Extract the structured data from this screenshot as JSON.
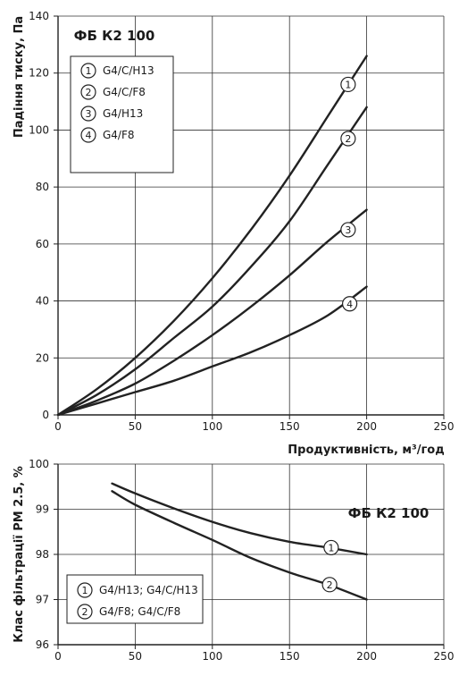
{
  "chart_data": [
    {
      "type": "line",
      "title": "ФБ К2 100",
      "xlabel": "Продуктивність, м³/год",
      "ylabel": "Падіння тиску, Па",
      "xlim": [
        0,
        250
      ],
      "ylim": [
        0,
        140
      ],
      "x_ticks": [
        "0",
        "50",
        "100",
        "150",
        "200",
        "250"
      ],
      "y_ticks": [
        "0",
        "20",
        "40",
        "60",
        "80",
        "100",
        "120",
        "140"
      ],
      "grid": true,
      "legend": "top-left",
      "series": [
        {
          "name": "G4/C/H13",
          "marker": "1",
          "label_at": [
            188,
            116
          ],
          "points": [
            [
              0,
              0
            ],
            [
              25,
              9
            ],
            [
              50,
              20
            ],
            [
              75,
              33
            ],
            [
              100,
              48
            ],
            [
              125,
              65
            ],
            [
              150,
              84
            ],
            [
              175,
              105
            ],
            [
              200,
              126
            ]
          ]
        },
        {
          "name": "G4/C/F8",
          "marker": "2",
          "label_at": [
            188,
            97
          ],
          "points": [
            [
              0,
              0
            ],
            [
              25,
              7
            ],
            [
              50,
              16
            ],
            [
              75,
              27
            ],
            [
              100,
              38
            ],
            [
              125,
              52
            ],
            [
              150,
              68
            ],
            [
              175,
              88
            ],
            [
              200,
              108
            ]
          ]
        },
        {
          "name": "G4/H13",
          "marker": "3",
          "label_at": [
            188,
            65
          ],
          "points": [
            [
              0,
              0
            ],
            [
              25,
              5
            ],
            [
              50,
              11
            ],
            [
              75,
              19
            ],
            [
              100,
              28
            ],
            [
              125,
              38
            ],
            [
              150,
              49
            ],
            [
              175,
              61
            ],
            [
              200,
              72
            ]
          ]
        },
        {
          "name": "G4/F8",
          "marker": "4",
          "label_at": [
            189,
            39
          ],
          "points": [
            [
              0,
              0
            ],
            [
              25,
              4
            ],
            [
              50,
              8
            ],
            [
              75,
              12
            ],
            [
              100,
              17
            ],
            [
              125,
              22
            ],
            [
              150,
              28
            ],
            [
              175,
              35
            ],
            [
              200,
              45
            ]
          ]
        }
      ]
    },
    {
      "type": "line",
      "title": "ФБ К2 100",
      "xlabel": "",
      "ylabel": "Клас фільтрації PM 2.5, %",
      "xlim": [
        0,
        250
      ],
      "ylim": [
        96,
        100
      ],
      "x_ticks": [
        "0",
        "50",
        "100",
        "150",
        "200",
        "250"
      ],
      "y_ticks": [
        "96",
        "97",
        "98",
        "99",
        "100"
      ],
      "grid": true,
      "legend": "bottom-left",
      "series": [
        {
          "name": "G4/H13; G4/C/H13",
          "marker": "1",
          "label_at": [
            177,
            98.15
          ],
          "points": [
            [
              35,
              99.57
            ],
            [
              50,
              99.35
            ],
            [
              75,
              99.02
            ],
            [
              100,
              98.72
            ],
            [
              125,
              98.47
            ],
            [
              150,
              98.28
            ],
            [
              175,
              98.15
            ],
            [
              200,
              98.0
            ]
          ]
        },
        {
          "name": "G4/F8; G4/C/F8",
          "marker": "2",
          "label_at": [
            176,
            97.33
          ],
          "points": [
            [
              35,
              99.4
            ],
            [
              50,
              99.1
            ],
            [
              75,
              98.7
            ],
            [
              100,
              98.32
            ],
            [
              125,
              97.92
            ],
            [
              150,
              97.6
            ],
            [
              175,
              97.33
            ],
            [
              200,
              97.0
            ]
          ]
        }
      ]
    }
  ]
}
